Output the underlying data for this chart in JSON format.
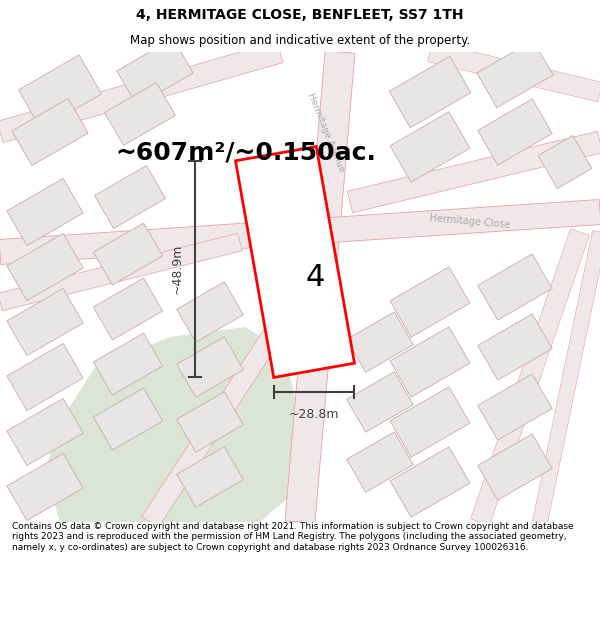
{
  "title": "4, HERMITAGE CLOSE, BENFLEET, SS7 1TH",
  "subtitle": "Map shows position and indicative extent of the property.",
  "area_text": "~607m²/~0.150ac.",
  "dim_width": "~28.8m",
  "dim_height": "~48.9m",
  "plot_number": "4",
  "footer": "Contains OS data © Crown copyright and database right 2021. This information is subject to Crown copyright and database rights 2023 and is reproduced with the permission of HM Land Registry. The polygons (including the associated geometry, namely x, y co-ordinates) are subject to Crown copyright and database rights 2023 Ordnance Survey 100026316.",
  "bg_color": "#ffffff",
  "map_bg": "#f5f3f0",
  "road_line_color": "#e8a0a0",
  "building_fill": "#e8e6e4",
  "building_edge": "#ccaaaa",
  "plot_fill": "#ffffff",
  "plot_edge": "#ff0000",
  "green_fill": "#c8d8c0",
  "street_label_color": "#aaaaaa",
  "dim_color": "#404040",
  "title_color": "#000000",
  "footer_color": "#000000",
  "title_fontsize": 10,
  "subtitle_fontsize": 8.5,
  "area_fontsize": 18,
  "dim_fontsize": 9,
  "footer_fontsize": 6.5,
  "plot_num_fontsize": 22
}
